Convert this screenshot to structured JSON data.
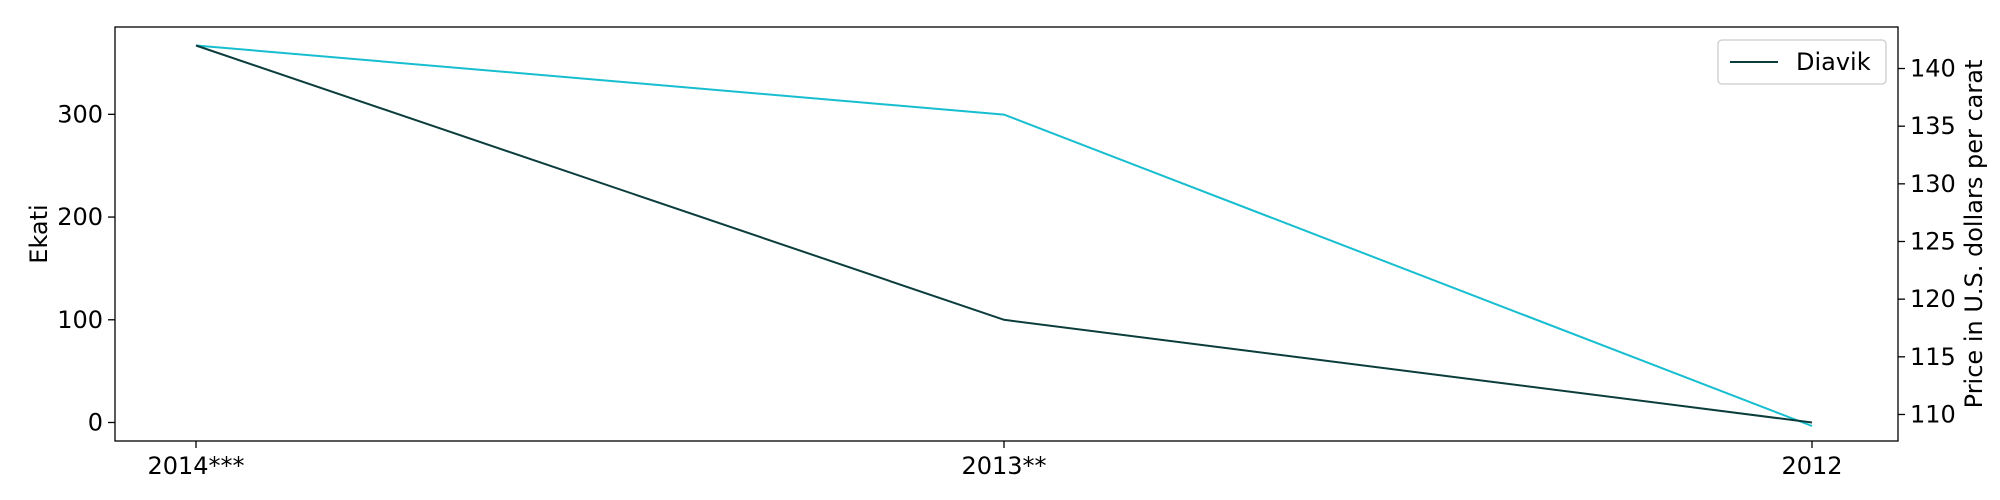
{
  "chart_data": {
    "type": "line",
    "categories": [
      "2014***",
      "2013**",
      "2012"
    ],
    "ylabel_left": "Ekati",
    "ylabel_right": "Price in U.S. dollars per carat",
    "ylim_left": [
      -18,
      385
    ],
    "ylim_right": [
      107.7,
      143.6
    ],
    "yticks_left": [
      0,
      100,
      200,
      300
    ],
    "yticks_right": [
      110,
      115,
      120,
      125,
      130,
      135,
      140
    ],
    "series": [
      {
        "name": "Diavik",
        "axis": "left",
        "color": "#0b3d3d",
        "values": [
          367,
          100,
          0
        ]
      },
      {
        "axis": "right",
        "color": "#17becf",
        "values": [
          142,
          136,
          109
        ]
      }
    ],
    "legend": {
      "position": "top-right",
      "entries": [
        "Diavik"
      ]
    },
    "grid": false
  }
}
